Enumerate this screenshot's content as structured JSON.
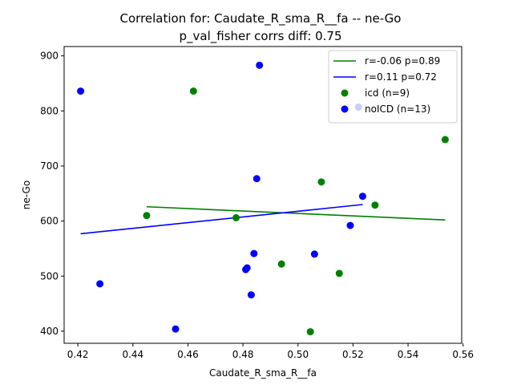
{
  "chart_data": {
    "type": "scatter",
    "title": "Correlation for: Caudate_R_sma_R__fa -- ne-Go",
    "subtitle": "p_val_fisher corrs diff: 0.75",
    "xlabel": "Caudate_R_sma_R__fa",
    "ylabel": "ne-Go",
    "xlim": [
      0.415,
      0.5595
    ],
    "ylim": [
      378,
      917
    ],
    "xticks": [
      0.42,
      0.44,
      0.46,
      0.48,
      0.5,
      0.52,
      0.54,
      0.56
    ],
    "xtick_labels": [
      "0.42",
      "0.44",
      "0.46",
      "0.48",
      "0.50",
      "0.52",
      "0.54",
      "0.56"
    ],
    "yticks": [
      400,
      500,
      600,
      700,
      800,
      900
    ],
    "ytick_labels": [
      "400",
      "500",
      "600",
      "700",
      "800",
      "900"
    ],
    "grid": false,
    "legend_position": "top-right",
    "series": [
      {
        "name": "icd (n=9)",
        "color": "#008000",
        "points": [
          {
            "x": 0.445,
            "y": 610
          },
          {
            "x": 0.462,
            "y": 836
          },
          {
            "x": 0.4775,
            "y": 606
          },
          {
            "x": 0.494,
            "y": 522
          },
          {
            "x": 0.5045,
            "y": 399
          },
          {
            "x": 0.5085,
            "y": 671
          },
          {
            "x": 0.515,
            "y": 505
          },
          {
            "x": 0.528,
            "y": 629
          },
          {
            "x": 0.5535,
            "y": 748
          }
        ]
      },
      {
        "name": "noICD (n=13)",
        "color": "#0000ff",
        "points": [
          {
            "x": 0.421,
            "y": 836
          },
          {
            "x": 0.428,
            "y": 486
          },
          {
            "x": 0.4555,
            "y": 404
          },
          {
            "x": 0.481,
            "y": 512
          },
          {
            "x": 0.4815,
            "y": 515
          },
          {
            "x": 0.483,
            "y": 466
          },
          {
            "x": 0.484,
            "y": 541
          },
          {
            "x": 0.485,
            "y": 677
          },
          {
            "x": 0.486,
            "y": 883
          },
          {
            "x": 0.506,
            "y": 540
          },
          {
            "x": 0.519,
            "y": 592
          },
          {
            "x": 0.522,
            "y": 807
          },
          {
            "x": 0.5235,
            "y": 645
          }
        ]
      }
    ],
    "fit_lines": [
      {
        "name": "r=-0.06 p=0.89",
        "color": "#008000",
        "x": [
          0.445,
          0.5535
        ],
        "y": [
          626,
          602
        ]
      },
      {
        "name": "r=0.11 p=0.72",
        "color": "#0000ff",
        "x": [
          0.421,
          0.5235
        ],
        "y": [
          577,
          630
        ]
      }
    ]
  }
}
